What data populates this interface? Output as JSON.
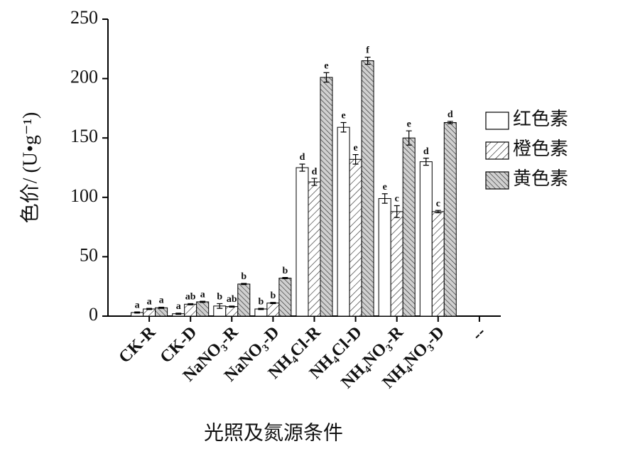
{
  "chart_data": {
    "type": "bar",
    "ylabel": "色价/ (U•g⁻¹)",
    "xlabel": "光照及氮源条件",
    "categories": [
      "CK-R",
      "CK-D",
      "NaNO₃-R",
      "NaNO₃-D",
      "NH₄Cl-R",
      "NH₄Cl-D",
      "NH₄NO₃-R",
      "NH₄NO₃-D",
      "--"
    ],
    "series": [
      {
        "name": "红色素",
        "color": "#ffffff",
        "hatch": null,
        "values": [
          3,
          2,
          8.5,
          6,
          125,
          159,
          99,
          130,
          null
        ],
        "errors": [
          0.5,
          0.5,
          2,
          0.5,
          3,
          4,
          4,
          3,
          null
        ],
        "letters": [
          "a",
          "a",
          "b",
          "b",
          "d",
          "e",
          "e",
          "d",
          null
        ]
      },
      {
        "name": "橙色素",
        "color": "#ffffff",
        "hatch": "/",
        "values": [
          6,
          10,
          8,
          11,
          113,
          132,
          88,
          88,
          null
        ],
        "errors": [
          0.5,
          0.5,
          0.5,
          0.5,
          3,
          4,
          5,
          1,
          null
        ],
        "letters": [
          "a",
          "ab",
          "ab",
          "b",
          "d",
          "e",
          "c",
          "c",
          null
        ]
      },
      {
        "name": "黄色素",
        "color": "#d0d0d0",
        "hatch": "\\",
        "values": [
          7,
          12,
          27,
          32,
          201,
          215,
          150,
          163,
          null
        ],
        "errors": [
          0.5,
          0.5,
          0.5,
          0.5,
          4,
          3,
          6,
          1,
          null
        ],
        "letters": [
          "a",
          "a",
          "b",
          "b",
          "e",
          "f",
          "e",
          "d",
          null
        ]
      }
    ],
    "ylim": [
      0,
      250
    ],
    "yticks": [
      0,
      50,
      100,
      150,
      200,
      250
    ]
  }
}
